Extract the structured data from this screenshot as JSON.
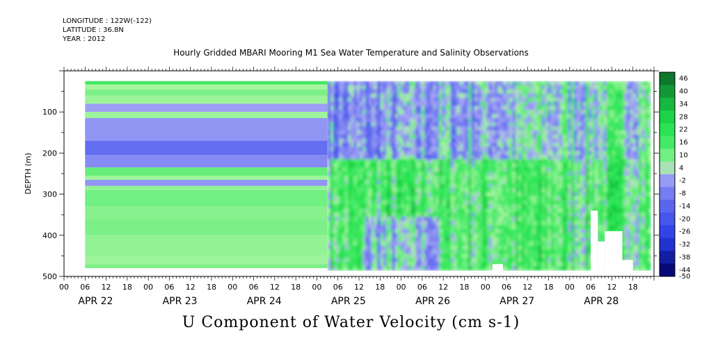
{
  "header": {
    "longitude": "LONGITUDE : 122W(-122)",
    "latitude": "LATITUDE : 36.8N",
    "year": "YEAR : 2012"
  },
  "chart_data": {
    "type": "heatmap",
    "title": "Hourly Gridded MBARI Mooring M1 Sea Water Temperature and Salinity Observations",
    "xlabel": "U Component of Water Velocity (cm s-1)",
    "ylabel": "DEPTH (m)",
    "ylim": [
      500,
      0
    ],
    "y_ticks": [
      100,
      200,
      300,
      400,
      500
    ],
    "hour_tick_labels": [
      "00",
      "06",
      "12",
      "18"
    ],
    "day_labels": [
      "APR 22",
      "APR 23",
      "APR 24",
      "APR 25",
      "APR 26",
      "APR 27",
      "APR 28"
    ],
    "colorbar": {
      "levels": [
        46,
        40,
        34,
        28,
        22,
        16,
        10,
        4,
        -2,
        -8,
        -14,
        -20,
        -26,
        -32,
        -38,
        -44,
        -50
      ],
      "min": -50,
      "max": 50
    },
    "colors": {
      "strong_positive": "#0a5a1e",
      "positive": "#1fe24a",
      "weak_positive": "#a8f5a0",
      "weak_negative": "#a8a8f5",
      "negative": "#3a4ee8",
      "strong_negative": "#000060"
    }
  }
}
